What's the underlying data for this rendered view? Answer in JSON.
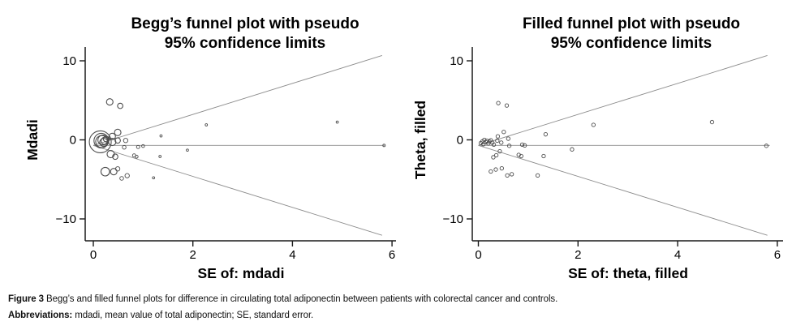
{
  "figure": {
    "caption": {
      "label": "Figure 3",
      "text": " Begg’s and filled funnel plots for difference in circulating total adiponectin between patients with colorectal cancer and controls.",
      "abbr_label": "Abbreviations:",
      "abbr_text": " mdadi, mean value of total adiponectin; SE, standard error."
    }
  },
  "colors": {
    "axis": "#1a1a1a",
    "funnel_line": "#8c8c8c",
    "marker": "#4d4d4d",
    "text": "#000000"
  },
  "chart_data": [
    {
      "type": "scatter",
      "variant": "begg-funnel-plot",
      "title_lines": [
        "Begg’s funnel plot with pseudo",
        "95% confidence limits"
      ],
      "xlabel": "SE of: mdadi",
      "ylabel": "Mdadi",
      "x_ticks": [
        0,
        2,
        4,
        6
      ],
      "x_tick_labels": [
        "0",
        "2",
        "4",
        "6"
      ],
      "y_ticks": [
        10,
        0,
        -10
      ],
      "y_tick_labels": [
        "10",
        "0",
        "−10"
      ],
      "xlim": [
        0,
        6.2
      ],
      "ylim": [
        -12.6,
        11.6
      ],
      "grid": false,
      "legend": "none",
      "pooled_estimate": -0.7,
      "ci_multiplier": 1.96,
      "funnel_se_max": 5.8,
      "center_line_end": 5.85,
      "marker_style": "open-circle-weighted",
      "points": [
        {
          "x": 0.14,
          "y": -0.25,
          "r": 13.5
        },
        {
          "x": 0.16,
          "y": -0.1,
          "r": 9
        },
        {
          "x": 0.17,
          "y": -0.22,
          "r": 7.5
        },
        {
          "x": 0.19,
          "y": -0.02,
          "r": 6
        },
        {
          "x": 0.21,
          "y": -0.32,
          "r": 5
        },
        {
          "x": 0.23,
          "y": -0.12,
          "r": 4.5
        },
        {
          "x": 0.26,
          "y": 0.1,
          "r": 3.5
        },
        {
          "x": 0.38,
          "y": 0.43,
          "r": 4
        },
        {
          "x": 0.49,
          "y": 0.94,
          "r": 4
        },
        {
          "x": 0.38,
          "y": -0.26,
          "r": 4.5
        },
        {
          "x": 0.49,
          "y": -0.08,
          "r": 3.3
        },
        {
          "x": 0.65,
          "y": -0.08,
          "r": 2.7
        },
        {
          "x": 0.62,
          "y": -0.94,
          "r": 2.3
        },
        {
          "x": 0.9,
          "y": -0.9,
          "r": 2
        },
        {
          "x": 1.0,
          "y": -0.78,
          "r": 1.8
        },
        {
          "x": 0.35,
          "y": -1.8,
          "r": 4.5
        },
        {
          "x": 0.44,
          "y": -2.13,
          "r": 3.3
        },
        {
          "x": 0.82,
          "y": -1.97,
          "r": 2
        },
        {
          "x": 0.87,
          "y": -2.13,
          "r": 1.8
        },
        {
          "x": 0.24,
          "y": -4.02,
          "r": 5.3
        },
        {
          "x": 0.41,
          "y": -4.02,
          "r": 4
        },
        {
          "x": 0.49,
          "y": -3.67,
          "r": 2.7
        },
        {
          "x": 0.57,
          "y": -4.87,
          "r": 2.3
        },
        {
          "x": 0.68,
          "y": -4.53,
          "r": 2.7
        },
        {
          "x": 0.33,
          "y": 4.8,
          "r": 4
        },
        {
          "x": 0.54,
          "y": 4.3,
          "r": 3.3
        },
        {
          "x": 1.36,
          "y": 0.5,
          "r": 1.4
        },
        {
          "x": 1.34,
          "y": -2.1,
          "r": 1.4
        },
        {
          "x": 1.21,
          "y": -4.8,
          "r": 1.4
        },
        {
          "x": 1.89,
          "y": -1.3,
          "r": 1.4
        },
        {
          "x": 2.27,
          "y": 1.9,
          "r": 1.4
        },
        {
          "x": 4.9,
          "y": 2.25,
          "r": 1.4
        },
        {
          "x": 5.84,
          "y": -0.7,
          "r": 1.5
        }
      ]
    },
    {
      "type": "scatter",
      "variant": "filled-funnel-plot",
      "title_lines": [
        "Filled funnel plot with pseudo",
        "95% confidence limits"
      ],
      "xlabel": "SE of: theta, filled",
      "ylabel": "Theta, filled",
      "x_ticks": [
        0,
        2,
        4,
        6
      ],
      "x_tick_labels": [
        "0",
        "2",
        "4",
        "6"
      ],
      "y_ticks": [
        10,
        0,
        -10
      ],
      "y_tick_labels": [
        "10",
        "0",
        "−10"
      ],
      "xlim": [
        0,
        6.2
      ],
      "ylim": [
        -12.6,
        11.6
      ],
      "grid": false,
      "legend": "none",
      "pooled_estimate": -0.7,
      "ci_multiplier": 1.96,
      "funnel_se_max": 5.8,
      "center_line_end": 5.85,
      "marker_style": "open-circle-uniform",
      "points": [
        {
          "x": 0.05,
          "y": -0.4,
          "r": 2.2
        },
        {
          "x": 0.08,
          "y": -0.2,
          "r": 2.2
        },
        {
          "x": 0.1,
          "y": -0.55,
          "r": 2.2
        },
        {
          "x": 0.12,
          "y": 0.0,
          "r": 2.2
        },
        {
          "x": 0.15,
          "y": -0.3,
          "r": 2.2
        },
        {
          "x": 0.17,
          "y": -0.1,
          "r": 2.2
        },
        {
          "x": 0.2,
          "y": -0.45,
          "r": 2.2
        },
        {
          "x": 0.22,
          "y": -0.2,
          "r": 2.2
        },
        {
          "x": 0.25,
          "y": -0.05,
          "r": 2.2
        },
        {
          "x": 0.28,
          "y": -0.35,
          "r": 2.2
        },
        {
          "x": 0.31,
          "y": -0.6,
          "r": 2.2
        },
        {
          "x": 0.39,
          "y": 0.45,
          "r": 2.2
        },
        {
          "x": 0.51,
          "y": 1.0,
          "r": 2.2
        },
        {
          "x": 0.38,
          "y": -0.1,
          "r": 2.2
        },
        {
          "x": 0.46,
          "y": -0.35,
          "r": 2.2
        },
        {
          "x": 0.6,
          "y": 0.15,
          "r": 2.2
        },
        {
          "x": 0.62,
          "y": -0.75,
          "r": 2.2
        },
        {
          "x": 0.43,
          "y": -1.45,
          "r": 2.2
        },
        {
          "x": 0.36,
          "y": -1.95,
          "r": 2.2
        },
        {
          "x": 0.3,
          "y": -2.2,
          "r": 2.2
        },
        {
          "x": 0.88,
          "y": -0.6,
          "r": 2.2
        },
        {
          "x": 0.93,
          "y": -0.7,
          "r": 2.2
        },
        {
          "x": 0.81,
          "y": -1.9,
          "r": 2.2
        },
        {
          "x": 0.86,
          "y": -2.05,
          "r": 2.2
        },
        {
          "x": 1.35,
          "y": 0.7,
          "r": 2.2
        },
        {
          "x": 1.31,
          "y": -2.05,
          "r": 2.2
        },
        {
          "x": 0.25,
          "y": -4.0,
          "r": 2.2
        },
        {
          "x": 0.35,
          "y": -3.75,
          "r": 2.2
        },
        {
          "x": 0.47,
          "y": -3.6,
          "r": 2.2
        },
        {
          "x": 0.58,
          "y": -4.5,
          "r": 2.2
        },
        {
          "x": 0.67,
          "y": -4.35,
          "r": 2.2
        },
        {
          "x": 1.19,
          "y": -4.5,
          "r": 2.2
        },
        {
          "x": 1.88,
          "y": -1.2,
          "r": 2.2
        },
        {
          "x": 2.31,
          "y": 1.9,
          "r": 2.2
        },
        {
          "x": 0.4,
          "y": 4.65,
          "r": 2.2
        },
        {
          "x": 0.57,
          "y": 4.35,
          "r": 2.2
        },
        {
          "x": 4.69,
          "y": 2.25,
          "r": 2.2
        },
        {
          "x": 5.78,
          "y": -0.75,
          "r": 2.2
        }
      ]
    }
  ]
}
